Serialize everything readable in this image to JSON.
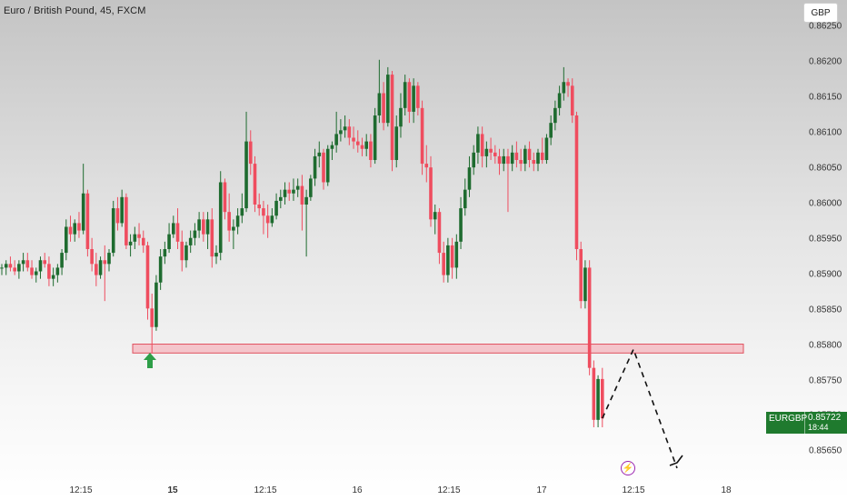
{
  "header": {
    "title": "Euro / British Pound, 45, FXCM",
    "currency_label": "GBP"
  },
  "price_axis": {
    "ticks": [
      "0.86250",
      "0.86200",
      "0.86150",
      "0.86100",
      "0.86050",
      "0.86000",
      "0.85950",
      "0.85900",
      "0.85850",
      "0.85800",
      "0.85750",
      "0.85700",
      "0.85650"
    ]
  },
  "time_axis": {
    "ticks": [
      {
        "label": "12:15",
        "bold": false
      },
      {
        "label": "15",
        "bold": true
      },
      {
        "label": "12:15",
        "bold": false
      },
      {
        "label": "16",
        "bold": false
      },
      {
        "label": "12:15",
        "bold": false
      },
      {
        "label": "17",
        "bold": false
      },
      {
        "label": "12:15",
        "bold": false
      },
      {
        "label": "18",
        "bold": false
      }
    ]
  },
  "last_price": {
    "symbol": "EURGBP",
    "price": "0.85722",
    "countdown": "18:44"
  },
  "event_marker": {
    "icon": "lightning-icon",
    "color": "#9c27b0"
  },
  "colors": {
    "up": "#1e6b2f",
    "down": "#ef4d5f",
    "zone_fill": "#f4b6bd",
    "zone_border": "#e0505e",
    "arrow": "#2e9e48"
  },
  "chart_data": {
    "type": "candlestick",
    "symbol": "EURGBP",
    "timeframe": "45",
    "ylim": [
      0.8564,
      0.8626
    ],
    "candles": [
      [
        0.85925,
        0.8593,
        0.85915,
        0.85925
      ],
      [
        0.85925,
        0.85935,
        0.85915,
        0.8593
      ],
      [
        0.8593,
        0.8594,
        0.8592,
        0.85925
      ],
      [
        0.85925,
        0.85935,
        0.85915,
        0.8592
      ],
      [
        0.8592,
        0.85935,
        0.8591,
        0.8593
      ],
      [
        0.8593,
        0.85945,
        0.8592,
        0.85935
      ],
      [
        0.85935,
        0.85945,
        0.8592,
        0.85925
      ],
      [
        0.85925,
        0.85935,
        0.8591,
        0.85915
      ],
      [
        0.85915,
        0.85925,
        0.85905,
        0.8592
      ],
      [
        0.8592,
        0.8594,
        0.8591,
        0.85935
      ],
      [
        0.85935,
        0.85945,
        0.85925,
        0.8593
      ],
      [
        0.8593,
        0.8594,
        0.859,
        0.8591
      ],
      [
        0.8591,
        0.85925,
        0.859,
        0.85915
      ],
      [
        0.85915,
        0.8593,
        0.85905,
        0.85925
      ],
      [
        0.85925,
        0.8595,
        0.85915,
        0.85945
      ],
      [
        0.85945,
        0.8599,
        0.85935,
        0.8598
      ],
      [
        0.8598,
        0.85995,
        0.8596,
        0.8597
      ],
      [
        0.8597,
        0.8599,
        0.8596,
        0.85985
      ],
      [
        0.85985,
        0.86,
        0.85965,
        0.85975
      ],
      [
        0.85975,
        0.86065,
        0.8597,
        0.86025
      ],
      [
        0.86025,
        0.8603,
        0.8594,
        0.8595
      ],
      [
        0.8595,
        0.85965,
        0.8592,
        0.8593
      ],
      [
        0.8593,
        0.85945,
        0.859,
        0.85915
      ],
      [
        0.85915,
        0.8594,
        0.8591,
        0.85935
      ],
      [
        0.85935,
        0.85955,
        0.8588,
        0.8593
      ],
      [
        0.8593,
        0.8595,
        0.8592,
        0.85945
      ],
      [
        0.85945,
        0.86015,
        0.8594,
        0.86005
      ],
      [
        0.86005,
        0.8602,
        0.85975,
        0.85985
      ],
      [
        0.85985,
        0.8603,
        0.8598,
        0.8602
      ],
      [
        0.8602,
        0.86025,
        0.8595,
        0.85955
      ],
      [
        0.85955,
        0.8597,
        0.8594,
        0.8596
      ],
      [
        0.8596,
        0.8598,
        0.8595,
        0.8597
      ],
      [
        0.8597,
        0.85985,
        0.85955,
        0.85965
      ],
      [
        0.85965,
        0.85975,
        0.85945,
        0.85955
      ],
      [
        0.85955,
        0.8596,
        0.85855,
        0.8587
      ],
      [
        0.8587,
        0.8589,
        0.8581,
        0.85845
      ],
      [
        0.85845,
        0.85915,
        0.8584,
        0.85905
      ],
      [
        0.85905,
        0.8595,
        0.85895,
        0.8594
      ],
      [
        0.8594,
        0.8596,
        0.8593,
        0.8595
      ],
      [
        0.8595,
        0.85985,
        0.85945,
        0.8597
      ],
      [
        0.8597,
        0.85995,
        0.85965,
        0.85985
      ],
      [
        0.85985,
        0.86005,
        0.8595,
        0.8596
      ],
      [
        0.8596,
        0.85975,
        0.8592,
        0.85935
      ],
      [
        0.85935,
        0.8596,
        0.85925,
        0.85955
      ],
      [
        0.85955,
        0.85975,
        0.85945,
        0.85965
      ],
      [
        0.85965,
        0.85985,
        0.85955,
        0.85975
      ],
      [
        0.85975,
        0.86,
        0.85965,
        0.8599
      ],
      [
        0.8599,
        0.86,
        0.8596,
        0.8597
      ],
      [
        0.8597,
        0.86,
        0.8595,
        0.8599
      ],
      [
        0.8599,
        0.86005,
        0.85925,
        0.8594
      ],
      [
        0.8594,
        0.85955,
        0.8593,
        0.85945
      ],
      [
        0.85945,
        0.86055,
        0.85935,
        0.8604
      ],
      [
        0.8604,
        0.86045,
        0.8599,
        0.86
      ],
      [
        0.86,
        0.86025,
        0.8596,
        0.85975
      ],
      [
        0.85975,
        0.8599,
        0.8595,
        0.8598
      ],
      [
        0.8598,
        0.86005,
        0.8597,
        0.85995
      ],
      [
        0.85995,
        0.86025,
        0.85985,
        0.86005
      ],
      [
        0.86005,
        0.86135,
        0.86,
        0.86095
      ],
      [
        0.86095,
        0.8611,
        0.8605,
        0.86065
      ],
      [
        0.86065,
        0.86075,
        0.86,
        0.8601
      ],
      [
        0.8601,
        0.86025,
        0.85995,
        0.86005
      ],
      [
        0.86005,
        0.86015,
        0.8597,
        0.85995
      ],
      [
        0.85995,
        0.8601,
        0.85965,
        0.85985
      ],
      [
        0.85985,
        0.86005,
        0.8598,
        0.85995
      ],
      [
        0.85995,
        0.86025,
        0.8599,
        0.86015
      ],
      [
        0.86015,
        0.8603,
        0.86005,
        0.8602
      ],
      [
        0.8602,
        0.8604,
        0.8601,
        0.8603
      ],
      [
        0.8603,
        0.8604,
        0.86015,
        0.86025
      ],
      [
        0.86025,
        0.86045,
        0.86015,
        0.8603
      ],
      [
        0.8603,
        0.86045,
        0.8602,
        0.86035
      ],
      [
        0.86035,
        0.8605,
        0.85975,
        0.8601
      ],
      [
        0.8601,
        0.8603,
        0.8594,
        0.8602
      ],
      [
        0.8602,
        0.8605,
        0.86015,
        0.86045
      ],
      [
        0.86045,
        0.86085,
        0.86035,
        0.86075
      ],
      [
        0.86075,
        0.86095,
        0.8606,
        0.8608
      ],
      [
        0.8608,
        0.86085,
        0.8603,
        0.8604
      ],
      [
        0.8604,
        0.8609,
        0.86035,
        0.86085
      ],
      [
        0.86085,
        0.86095,
        0.8607,
        0.8609
      ],
      [
        0.8609,
        0.86135,
        0.8608,
        0.86105
      ],
      [
        0.86105,
        0.86125,
        0.86095,
        0.8611
      ],
      [
        0.8611,
        0.8613,
        0.861,
        0.86115
      ],
      [
        0.86115,
        0.86125,
        0.8609,
        0.861
      ],
      [
        0.861,
        0.86115,
        0.86085,
        0.86095
      ],
      [
        0.86095,
        0.8611,
        0.8608,
        0.8609
      ],
      [
        0.8609,
        0.861,
        0.86075,
        0.86085
      ],
      [
        0.86085,
        0.86105,
        0.86075,
        0.86095
      ],
      [
        0.86095,
        0.86105,
        0.8606,
        0.8607
      ],
      [
        0.8607,
        0.8614,
        0.86065,
        0.8613
      ],
      [
        0.8613,
        0.86205,
        0.8612,
        0.8616
      ],
      [
        0.8616,
        0.86175,
        0.8611,
        0.8612
      ],
      [
        0.8612,
        0.86195,
        0.86115,
        0.86185
      ],
      [
        0.86185,
        0.8619,
        0.86055,
        0.8607
      ],
      [
        0.8607,
        0.8613,
        0.8606,
        0.86115
      ],
      [
        0.86115,
        0.8616,
        0.861,
        0.8614
      ],
      [
        0.8614,
        0.86185,
        0.8613,
        0.86175
      ],
      [
        0.86175,
        0.8618,
        0.8612,
        0.86135
      ],
      [
        0.86135,
        0.8618,
        0.8612,
        0.8617
      ],
      [
        0.8617,
        0.86175,
        0.8613,
        0.8614
      ],
      [
        0.8614,
        0.8615,
        0.8605,
        0.86065
      ],
      [
        0.86065,
        0.8609,
        0.8604,
        0.8606
      ],
      [
        0.8606,
        0.86075,
        0.8598,
        0.8599
      ],
      [
        0.8599,
        0.8601,
        0.8597,
        0.86
      ],
      [
        0.86,
        0.86005,
        0.8593,
        0.85945
      ],
      [
        0.85945,
        0.8596,
        0.85905,
        0.85915
      ],
      [
        0.85915,
        0.85965,
        0.85905,
        0.85955
      ],
      [
        0.85955,
        0.85965,
        0.8591,
        0.85925
      ],
      [
        0.85925,
        0.8597,
        0.8591,
        0.8596
      ],
      [
        0.8596,
        0.8602,
        0.8595,
        0.86005
      ],
      [
        0.86005,
        0.86045,
        0.85995,
        0.8603
      ],
      [
        0.8603,
        0.86075,
        0.8602,
        0.8606
      ],
      [
        0.8606,
        0.8609,
        0.8605,
        0.8608
      ],
      [
        0.8608,
        0.86115,
        0.86065,
        0.86105
      ],
      [
        0.86105,
        0.86115,
        0.8606,
        0.86075
      ],
      [
        0.86075,
        0.86095,
        0.8606,
        0.86085
      ],
      [
        0.86085,
        0.861,
        0.8607,
        0.8608
      ],
      [
        0.8608,
        0.8609,
        0.86065,
        0.86075
      ],
      [
        0.86075,
        0.86085,
        0.8605,
        0.86065
      ],
      [
        0.86065,
        0.86085,
        0.86055,
        0.86075
      ],
      [
        0.86075,
        0.86085,
        0.86,
        0.86065
      ],
      [
        0.86065,
        0.8609,
        0.86055,
        0.8608
      ],
      [
        0.8608,
        0.86095,
        0.8606,
        0.8607
      ],
      [
        0.8607,
        0.86085,
        0.86055,
        0.86065
      ],
      [
        0.86065,
        0.8609,
        0.86055,
        0.86085
      ],
      [
        0.86085,
        0.86095,
        0.8606,
        0.8607
      ],
      [
        0.8607,
        0.8608,
        0.86055,
        0.86065
      ],
      [
        0.86065,
        0.86085,
        0.86055,
        0.8608
      ],
      [
        0.8608,
        0.861,
        0.86065,
        0.8607
      ],
      [
        0.8607,
        0.86105,
        0.86065,
        0.861
      ],
      [
        0.861,
        0.8613,
        0.8609,
        0.8612
      ],
      [
        0.8612,
        0.8615,
        0.8611,
        0.8614
      ],
      [
        0.8614,
        0.8617,
        0.8613,
        0.8616
      ],
      [
        0.8616,
        0.86195,
        0.8615,
        0.86175
      ],
      [
        0.86175,
        0.8618,
        0.86155,
        0.8617
      ],
      [
        0.8617,
        0.8618,
        0.8612,
        0.8613
      ],
      [
        0.8613,
        0.86135,
        0.85935,
        0.8595
      ],
      [
        0.8595,
        0.8596,
        0.8587,
        0.8588
      ],
      [
        0.8588,
        0.85935,
        0.8587,
        0.85925
      ],
      [
        0.85925,
        0.85935,
        0.8578,
        0.8579
      ],
      [
        0.8579,
        0.858,
        0.8571,
        0.8572
      ],
      [
        0.8572,
        0.8578,
        0.8571,
        0.85775
      ],
      [
        0.85775,
        0.8579,
        0.8571,
        0.85722
      ]
    ],
    "support_zone": {
      "price_low": 0.8581,
      "price_high": 0.85822
    },
    "projection": {
      "style": "dashed",
      "points": [
        [
          0.85722
        ],
        [
          0.85815
        ],
        [
          0.85655
        ]
      ]
    },
    "markers": [
      {
        "type": "arrow-up",
        "color": "#2e9e48"
      }
    ]
  }
}
